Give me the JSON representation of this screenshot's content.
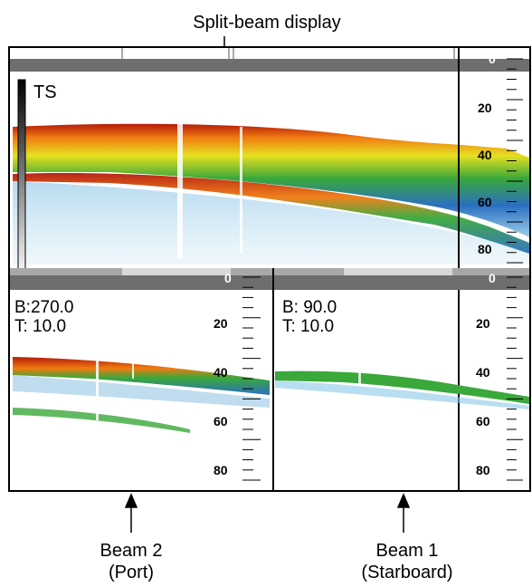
{
  "callouts": {
    "top": "Split-beam display",
    "beam2_line1": "Beam 2",
    "beam2_line2": "(Port)",
    "beam1_line1": "Beam 1",
    "beam1_line2": "(Starboard)"
  },
  "top_panel": {
    "ts_label": "TS",
    "depth_scale": [
      "0",
      "20",
      "40",
      "60",
      "80"
    ]
  },
  "port_panel": {
    "bearing": "B:270.0",
    "tilt": "T: 10.0",
    "depth_scale": [
      "0",
      "20",
      "40",
      "60",
      "80"
    ]
  },
  "starboard_panel": {
    "bearing": "B: 90.0",
    "tilt": "T: 10.0",
    "depth_scale": [
      "0",
      "20",
      "40",
      "60",
      "80"
    ]
  },
  "colors": {
    "header_bar": "#6e6e6e",
    "echo_red": "#b41a0a",
    "echo_orange": "#f07a10",
    "echo_yellow": "#e6e020",
    "echo_green": "#3aa83a",
    "echo_blue": "#2a6fc0",
    "echo_light": "#9fd0ea"
  }
}
